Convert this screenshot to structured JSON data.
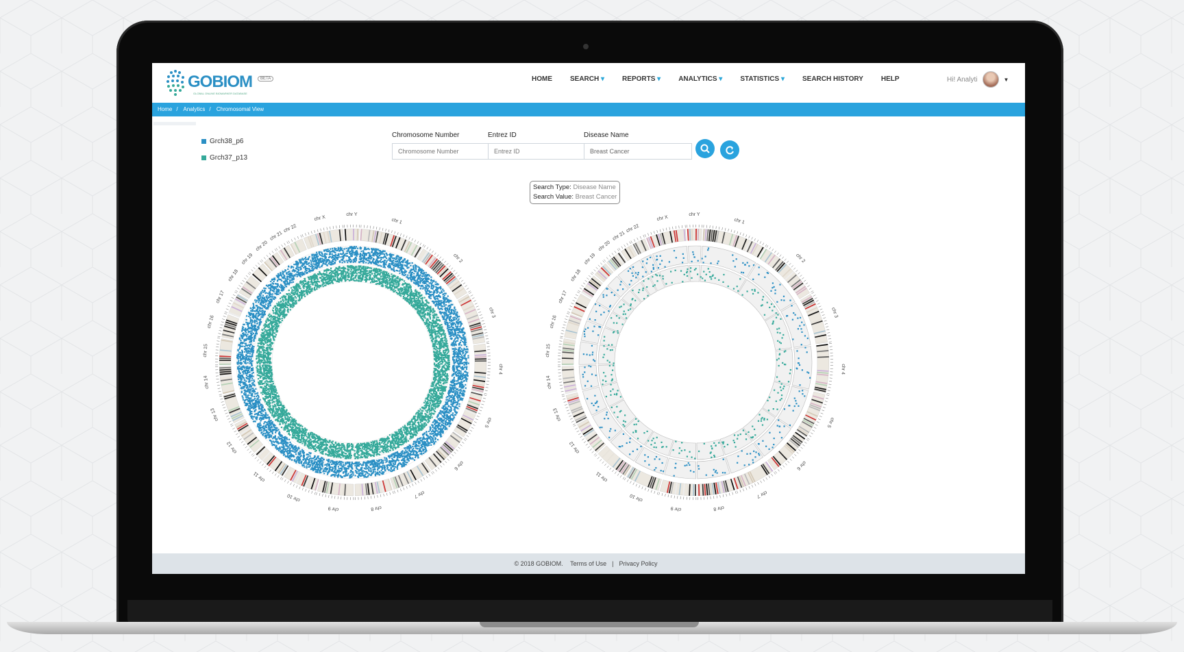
{
  "app": {
    "logo": "GOBIOM",
    "logo_sub": "GLOBAL ONLINE BIOMARKER DATABASE",
    "badge": "BETA"
  },
  "nav": {
    "items": [
      {
        "label": "HOME",
        "dropdown": false
      },
      {
        "label": "SEARCH",
        "dropdown": true
      },
      {
        "label": "REPORTS",
        "dropdown": true
      },
      {
        "label": "ANALYTICS",
        "dropdown": true
      },
      {
        "label": "STATISTICS",
        "dropdown": true
      },
      {
        "label": "SEARCH HISTORY",
        "dropdown": false
      },
      {
        "label": "HELP",
        "dropdown": false
      }
    ],
    "greeting": "Hi! Analyti"
  },
  "breadcrumb": [
    "Home",
    "Analytics",
    "Chromosomal View"
  ],
  "legend": [
    {
      "label": "Grch38_p6",
      "color": "#2a8fc4"
    },
    {
      "label": "Grch37_p13",
      "color": "#35a99a"
    }
  ],
  "form": {
    "chromosome": {
      "label": "Chromosome Number",
      "placeholder": "Chromosome Number",
      "value": ""
    },
    "entrez": {
      "label": "Entrez ID",
      "placeholder": "Entrez ID",
      "value": ""
    },
    "disease": {
      "label": "Disease Name",
      "placeholder": "Disease Name",
      "value": "Breast Cancer"
    }
  },
  "buttons": {
    "search_icon": "search-icon",
    "refresh_icon": "refresh-icon"
  },
  "tooltip": {
    "type_label": "Search Type:",
    "type_value": "Disease Name",
    "value_label": "Search Value:",
    "value_value": "Breast Cancer"
  },
  "chart_data": [
    {
      "type": "circos",
      "chromosomes": [
        "chr 1",
        "chr 2",
        "chr 3",
        "chr 4",
        "chr 5",
        "chr 6",
        "chr 7",
        "chr 8",
        "chr 9",
        "chr 10",
        "chr 11",
        "chr 12",
        "chr 13",
        "chr 14",
        "chr 15",
        "chr 16",
        "chr 17",
        "chr 18",
        "chr 19",
        "chr 20",
        "chr 21",
        "chr 22",
        "chr X",
        "chr Y"
      ],
      "tracks": [
        {
          "name": "Grch38_p6",
          "color": "#2a8fc4",
          "density": "high"
        },
        {
          "name": "Grch37_p13",
          "color": "#35a99a",
          "density": "high"
        }
      ]
    },
    {
      "type": "circos",
      "chromosomes": [
        "chr 1",
        "chr 2",
        "chr 3",
        "chr 4",
        "chr 5",
        "chr 6",
        "chr 7",
        "chr 8",
        "chr 9",
        "chr 10",
        "chr 11",
        "chr 12",
        "chr 13",
        "chr 14",
        "chr 15",
        "chr 16",
        "chr 17",
        "chr 18",
        "chr 19",
        "chr 20",
        "chr 21",
        "chr 22",
        "chr X",
        "chr Y"
      ],
      "tracks": [
        {
          "name": "Grch38_p6",
          "color": "#2a8fc4",
          "density": "low"
        },
        {
          "name": "Grch37_p13",
          "color": "#35a99a",
          "density": "low"
        }
      ]
    }
  ],
  "footer": {
    "copyright": "© 2018 GOBIOM.",
    "terms": "Terms of Use",
    "separator": "|",
    "privacy": "Privacy Policy"
  },
  "colors": {
    "accent": "#2aa3de",
    "teal": "#35a99a",
    "blue": "#2a8fc4",
    "footer_bg": "#dde3e8"
  }
}
